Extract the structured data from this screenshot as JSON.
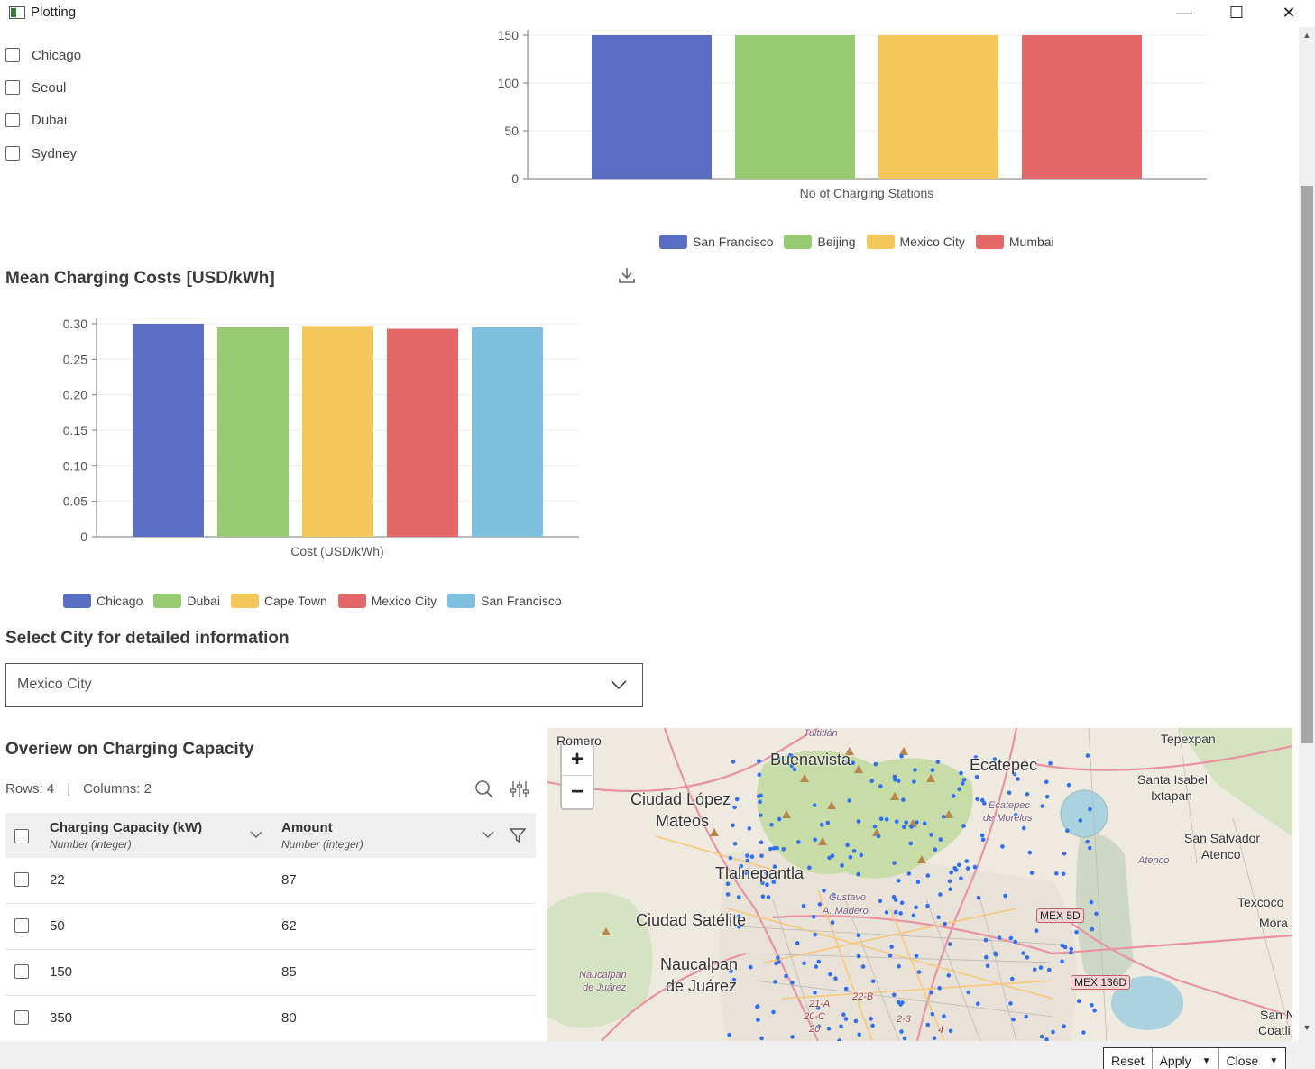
{
  "window": {
    "title": "Plotting",
    "minimize": "—",
    "maximize": "☐",
    "close": "✕"
  },
  "cities": [
    "Chicago",
    "Seoul",
    "Dubai",
    "Sydney"
  ],
  "charging_chart": {
    "xlabel": "No of Charging Stations",
    "legend": [
      "San Francisco",
      "Beijing",
      "Mexico City",
      "Mumbai"
    ]
  },
  "cost_section": {
    "title": "Mean Charging Costs [USD/kWh]"
  },
  "cost_chart": {
    "xlabel": "Cost (USD/kWh)",
    "legend": [
      "Chicago",
      "Dubai",
      "Cape Town",
      "Mexico City",
      "San Francisco"
    ]
  },
  "chart_data": [
    {
      "type": "bar",
      "xlabel": "No of Charging Stations",
      "ylim": [
        0,
        150
      ],
      "yticks": [
        "0",
        "50",
        "100",
        "150"
      ],
      "grid": true,
      "legend_position": "bottom",
      "series": [
        {
          "name": "San Francisco",
          "values": [
            155
          ],
          "color": "#5a6fc4"
        },
        {
          "name": "Beijing",
          "values": [
            155
          ],
          "color": "#98ca74"
        },
        {
          "name": "Mexico City",
          "values": [
            155
          ],
          "color": "#f4c75a"
        },
        {
          "name": "Mumbai",
          "values": [
            155
          ],
          "color": "#e46867"
        }
      ]
    },
    {
      "type": "bar",
      "xlabel": "Cost (USD/kWh)",
      "ylim": [
        0,
        0.3
      ],
      "yticks": [
        "0",
        "0.05",
        "0.10",
        "0.15",
        "0.20",
        "0.25",
        "0.30"
      ],
      "grid": true,
      "legend_position": "bottom",
      "series": [
        {
          "name": "Chicago",
          "values": [
            0.3
          ],
          "color": "#5a6fc4"
        },
        {
          "name": "Dubai",
          "values": [
            0.295
          ],
          "color": "#98ca74"
        },
        {
          "name": "Cape Town",
          "values": [
            0.297
          ],
          "color": "#f4c75a"
        },
        {
          "name": "Mexico City",
          "values": [
            0.293
          ],
          "color": "#e46867"
        },
        {
          "name": "San Francisco",
          "values": [
            0.295
          ],
          "color": "#7fc0df"
        }
      ]
    }
  ],
  "select_section": {
    "title": "Select City for detailed information",
    "selected": "Mexico City"
  },
  "overview": {
    "title": "Overiew on Charging Capacity",
    "rows_label": "Rows: 4",
    "columns_label": "Columns: 2",
    "columns": [
      {
        "name": "Charging Capacity (kW)",
        "type": "Number (integer)"
      },
      {
        "name": "Amount",
        "type": "Number (integer)"
      }
    ],
    "rows": [
      [
        "22",
        "87"
      ],
      [
        "50",
        "62"
      ],
      [
        "150",
        "85"
      ],
      [
        "350",
        "80"
      ]
    ]
  },
  "map": {
    "zoom_in": "+",
    "zoom_out": "−",
    "labels": {
      "romero": "Romero",
      "tultitlan": "Tultitlán",
      "buenavista": "Buenavista",
      "ecatepec": "Ecatepec",
      "tepexpan": "Tepexpan",
      "ciudad_lopez_1": "Ciudad López",
      "ciudad_lopez_2": "Mateos",
      "ecatepec_morelos_1": "Ecatepec",
      "ecatepec_morelos_2": "de Morelos",
      "santa_isabel_1": "Santa Isabel",
      "santa_isabel_2": "Ixtapan",
      "san_salvador_1": "San Salvador",
      "san_salvador_2": "Atenco",
      "atenco": "Atenco",
      "tlalnepantla": "Tlalnepantla",
      "gustavo_1": "Gustavo",
      "gustavo_2": "A. Madero",
      "texcoco": "Texcoco",
      "mora": "Mora",
      "ciudad_satelite": "Ciudad Satélite",
      "naucalpan_1": "Naucalpan",
      "naucalpan_2": "de Juárez",
      "naucalpan_small_1": "Naucalpan",
      "naucalpan_small_2": "de Juárez",
      "san_n": "San N",
      "coatli": "Coatli",
      "r21a": "21-A",
      "r20c": "20-C",
      "r20": "20",
      "r22b": "22-B",
      "r23": "2-3",
      "r4": "4"
    },
    "shields": {
      "mex5d": "MEX 5D",
      "mex136d": "MEX 136D"
    }
  },
  "bottom": {
    "reset": "Reset",
    "apply": "Apply",
    "close": "Close"
  }
}
